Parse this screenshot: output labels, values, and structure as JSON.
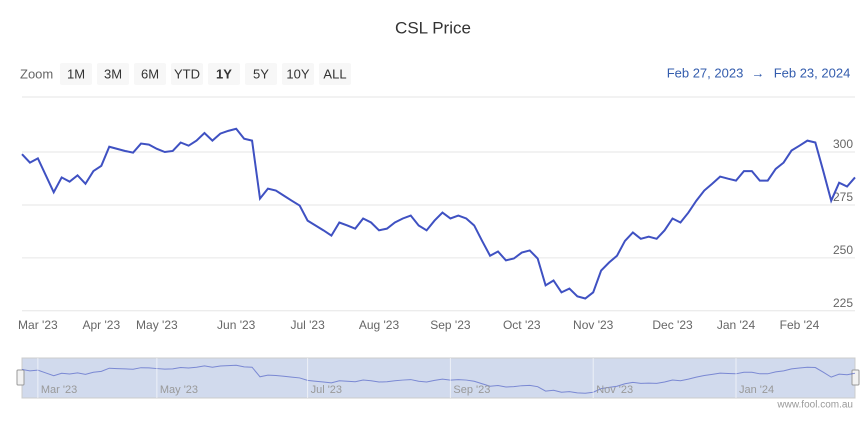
{
  "chart_data": {
    "type": "line",
    "title": "CSL Price",
    "range_selector": {
      "label": "Zoom",
      "buttons": [
        "1M",
        "3M",
        "6M",
        "YTD",
        "1Y",
        "5Y",
        "10Y",
        "ALL"
      ]
    },
    "date_range": {
      "from": "Feb 27, 2023",
      "arrow": "→",
      "to": "Feb 23, 2024"
    },
    "categories": [
      null,
      null,
      "Mar '23",
      null,
      null,
      null,
      null,
      null,
      null,
      null,
      "Apr '23",
      null,
      null,
      null,
      null,
      null,
      null,
      "May '23",
      null,
      null,
      null,
      null,
      null,
      null,
      null,
      null,
      null,
      "Jun '23",
      null,
      null,
      null,
      null,
      null,
      null,
      null,
      null,
      "Jul '23",
      null,
      null,
      null,
      null,
      null,
      null,
      null,
      null,
      "Aug '23",
      null,
      null,
      null,
      null,
      null,
      null,
      null,
      null,
      "Sep '23",
      null,
      null,
      null,
      null,
      null,
      null,
      null,
      null,
      "Oct '23",
      null,
      null,
      null,
      null,
      null,
      null,
      null,
      null,
      "Nov '23",
      null,
      null,
      null,
      null,
      null,
      null,
      null,
      null,
      null,
      "Dec '23",
      null,
      null,
      null,
      null,
      null,
      null,
      null,
      "Jan '24",
      null,
      null,
      null,
      null,
      null,
      null,
      null,
      "Feb '24",
      null,
      null,
      null,
      null,
      null,
      null,
      null
    ],
    "values": [
      299,
      295,
      297,
      289,
      281,
      288,
      286,
      289,
      285,
      291,
      293.5,
      302.5,
      301.5,
      300.5,
      299.7,
      304,
      303.5,
      301.5,
      300,
      300.5,
      304.5,
      303,
      305.4,
      309,
      305.4,
      308.7,
      310,
      311,
      306.3,
      305.4,
      278,
      282.7,
      281.8,
      279.4,
      277,
      274.7,
      267.6,
      265.3,
      263,
      260.5,
      266.7,
      265.3,
      263.8,
      268.6,
      266.7,
      263,
      263.8,
      266.7,
      268.6,
      270,
      265.3,
      263,
      267.6,
      271.4,
      268.6,
      270,
      268.6,
      265.3,
      258,
      251,
      253,
      248.8,
      249.7,
      252.5,
      253.5,
      249.7,
      237,
      239.3,
      233.7,
      235.5,
      231.8,
      230.8,
      233.7,
      244,
      247.8,
      251,
      258,
      262,
      259,
      260,
      259,
      263,
      268.6,
      266.7,
      271.4,
      277,
      281.8,
      285,
      288.4,
      287.4,
      286.5,
      291,
      291,
      286.5,
      286.5,
      292,
      295,
      300.7,
      303,
      305.4,
      304.5,
      291,
      277,
      285.5,
      283.7,
      288
    ],
    "color": "#3f51c2",
    "ylim": [
      223,
      326
    ],
    "yticks": [
      225,
      250,
      275,
      300
    ],
    "grid": true,
    "navigator_labels": [
      "Mar '23",
      "May '23",
      "Jul '23",
      "Sep '23",
      "Nov '23",
      "Jan '24"
    ],
    "credits": "www.fool.com.au"
  }
}
